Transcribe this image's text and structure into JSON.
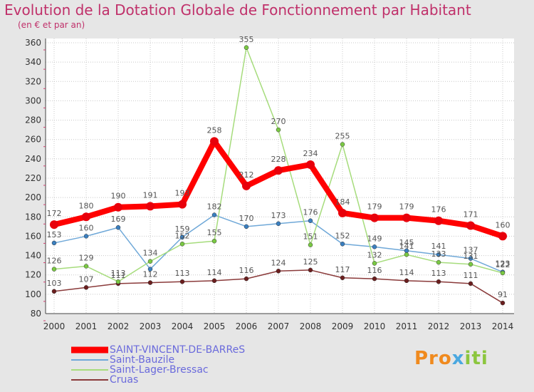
{
  "header": {
    "title": "Evolution de la Dotation Globale de Fonctionnement par Habitant",
    "subtitle": "(en € et par an)"
  },
  "logo": {
    "text": "Proxiti",
    "parts": [
      "Pro",
      "x",
      "iti"
    ]
  },
  "colors": {
    "background": "#e6e6e6",
    "plot_background": "#ffffff",
    "grid": "#c8c8c8",
    "title": "#c0306a",
    "tick_text": "#333333",
    "label_text": "#555555",
    "legend_text": "#6a6adc"
  },
  "chart_data": {
    "type": "line",
    "title": "Evolution de la Dotation Globale de Fonctionnement par Habitant",
    "subtitle": "(en € et par an)",
    "xlabel": "",
    "ylabel": "",
    "ylim": [
      80,
      360
    ],
    "ytick_step": 20,
    "yticks": [
      "80",
      "100",
      "120",
      "140",
      "160",
      "180",
      "200",
      "220",
      "240",
      "260",
      "280",
      "300",
      "320",
      "340",
      "360"
    ],
    "grid": true,
    "legend_position": "bottom-left",
    "x": [
      "2000",
      "2001",
      "2002",
      "2003",
      "2004",
      "2005",
      "2006",
      "2007",
      "2008",
      "2009",
      "2010",
      "2011",
      "2012",
      "2013",
      "2014"
    ],
    "series": [
      {
        "name": "SAINT-VINCENT-DE-BARReS",
        "color": "#e8000b",
        "line_color": "#ff0000",
        "width": 8,
        "marker": 6,
        "values": [
          172,
          180,
          190,
          191,
          193,
          258,
          212,
          228,
          234,
          184,
          179,
          179,
          176,
          171,
          160
        ],
        "labels": [
          "172",
          "180",
          "190",
          "191",
          "193",
          "258",
          "212",
          "228",
          "234",
          "184",
          "179",
          "179",
          "176",
          "171",
          "160"
        ]
      },
      {
        "name": "Saint-Bauzile",
        "color": "#3a7fc0",
        "line_color": "#6fa8d8",
        "width": 1.5,
        "marker": 3,
        "values": [
          153,
          160,
          169,
          126,
          159,
          182,
          170,
          173,
          176,
          152,
          149,
          145,
          141,
          137,
          123
        ],
        "labels": [
          "153",
          "160",
          "169",
          "",
          "159",
          "182",
          "170",
          "173",
          "176",
          "152",
          "149",
          "145",
          "141",
          "137",
          "123"
        ]
      },
      {
        "name": "Saint-Lager-Bressac",
        "color": "#7ac943",
        "line_color": "#a6dc7c",
        "width": 1.5,
        "marker": 3,
        "values": [
          126,
          129,
          113,
          134,
          152,
          155,
          355,
          270,
          151,
          255,
          132,
          141,
          133,
          131,
          122
        ],
        "labels": [
          "126",
          "129",
          "113",
          "134",
          "152",
          "155",
          "355",
          "270",
          "151",
          "255",
          "132",
          "141",
          "133",
          "131",
          "122"
        ]
      },
      {
        "name": "Cruas",
        "color": "#6b1e1e",
        "line_color": "#8a3a3a",
        "width": 1.5,
        "marker": 3,
        "values": [
          103,
          107,
          111,
          112,
          113,
          114,
          116,
          124,
          125,
          117,
          116,
          114,
          113,
          111,
          91
        ],
        "labels": [
          "103",
          "107",
          "111",
          "112",
          "113",
          "114",
          "116",
          "124",
          "125",
          "117",
          "116",
          "114",
          "113",
          "111",
          "91"
        ]
      }
    ]
  }
}
